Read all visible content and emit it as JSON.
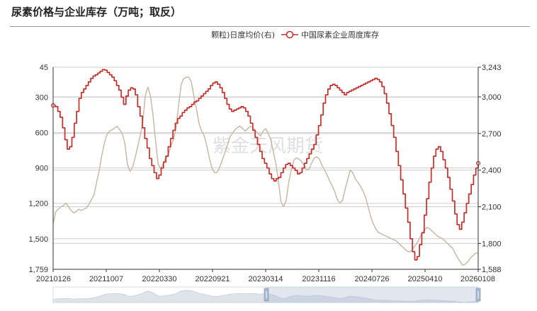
{
  "title": "尿素价格与企业库存（万吨；取反）",
  "watermark": "紫金天风期货",
  "chart_data": {
    "type": "line",
    "title": "尿素价格与企业库存（万吨；取反）",
    "x_ticks": [
      "20210126",
      "20211007",
      "20220330",
      "20220921",
      "20230314",
      "20231116",
      "20240726",
      "20250410",
      "20260108"
    ],
    "left_axis": {
      "ticks": [
        45,
        300,
        600,
        900,
        1200,
        1500,
        1759
      ],
      "range": [
        45,
        1759
      ],
      "inverted": true
    },
    "right_axis": {
      "ticks": [
        3243,
        3000,
        2700,
        2400,
        2100,
        1800,
        1588
      ],
      "range": [
        1588,
        3243
      ]
    },
    "legend_position": "top-right",
    "grid": true,
    "series": [
      {
        "name": "颗粒)日度均价(右)",
        "axis": "right",
        "color": "#c9b9a6",
        "values": [
          1960,
          2060,
          2080,
          2100,
          2110,
          2130,
          2100,
          2070,
          2050,
          2060,
          2080,
          2070,
          2080,
          2090,
          2120,
          2160,
          2200,
          2300,
          2400,
          2520,
          2620,
          2690,
          2720,
          2730,
          2745,
          2760,
          2730,
          2700,
          2620,
          2450,
          2390,
          2420,
          2500,
          2590,
          2680,
          2790,
          3010,
          3080,
          3010,
          2850,
          2640,
          2450,
          2410,
          2450,
          2500,
          2530,
          2600,
          2650,
          2750,
          2930,
          3100,
          3150,
          3160,
          3160,
          3120,
          3000,
          2900,
          2780,
          2720,
          2680,
          2600,
          2500,
          2420,
          2380,
          2380,
          2420,
          2480,
          2540,
          2600,
          2670,
          2700,
          2730,
          2750,
          2760,
          2740,
          2720,
          2740,
          2760,
          2750,
          2720,
          2700,
          2680,
          2720,
          2740,
          2700,
          2650,
          2550,
          2450,
          2300,
          2140,
          2100,
          2150,
          2300,
          2400,
          2480,
          2500,
          2490,
          2470,
          2440,
          2400,
          2410,
          2460,
          2500,
          2510,
          2490,
          2440,
          2400,
          2360,
          2310,
          2270,
          2220,
          2160,
          2130,
          2150,
          2240,
          2320,
          2400,
          2380,
          2330,
          2300,
          2270,
          2230,
          2180,
          2100,
          2020,
          1960,
          1920,
          1890,
          1880,
          1870,
          1860,
          1850,
          1840,
          1830,
          1820,
          1800,
          1780,
          1760,
          1740,
          1730,
          1740,
          1770,
          1800,
          1840,
          1880,
          1910,
          1930,
          1920,
          1900,
          1880,
          1860,
          1850,
          1840,
          1820,
          1800,
          1780,
          1760,
          1720,
          1680,
          1650,
          1620,
          1630,
          1650,
          1680,
          1700,
          1720,
          1720
        ]
      },
      {
        "name": "中国尿素企业周度库存",
        "axis": "left",
        "color": "#c72e29",
        "values": [
          370,
          380,
          420,
          470,
          560,
          660,
          740,
          720,
          640,
          520,
          420,
          310,
          260,
          230,
          200,
          170,
          140,
          120,
          110,
          95,
          80,
          65,
          70,
          90,
          110,
          130,
          160,
          200,
          240,
          300,
          360,
          290,
          240,
          220,
          230,
          280,
          380,
          460,
          560,
          650,
          730,
          820,
          880,
          940,
          990,
          960,
          900,
          850,
          800,
          720,
          650,
          580,
          520,
          480,
          460,
          430,
          410,
          390,
          380,
          360,
          340,
          330,
          310,
          290,
          270,
          250,
          230,
          200,
          180,
          170,
          190,
          220,
          260,
          310,
          360,
          400,
          420,
          410,
          400,
          390,
          380,
          390,
          420,
          460,
          520,
          580,
          640,
          700,
          760,
          820,
          860,
          900,
          950,
          990,
          1010,
          990,
          980,
          940,
          900,
          870,
          860,
          880,
          900,
          920,
          950,
          940,
          900,
          860,
          820,
          780,
          740,
          700,
          620,
          540,
          450,
          350,
          280,
          230,
          200,
          190,
          200,
          220,
          240,
          260,
          280,
          260,
          250,
          240,
          230,
          220,
          210,
          200,
          190,
          180,
          170,
          160,
          150,
          140,
          150,
          170,
          210,
          270,
          350,
          440,
          540,
          640,
          760,
          880,
          1000,
          1120,
          1240,
          1360,
          1500,
          1610,
          1680,
          1650,
          1550,
          1450,
          1300,
          1160,
          1020,
          900,
          800,
          740,
          720,
          760,
          830,
          900,
          980,
          1080,
          1180,
          1290,
          1380,
          1420,
          1360,
          1280,
          1200,
          1120,
          1040,
          960,
          900,
          860
        ]
      }
    ]
  }
}
